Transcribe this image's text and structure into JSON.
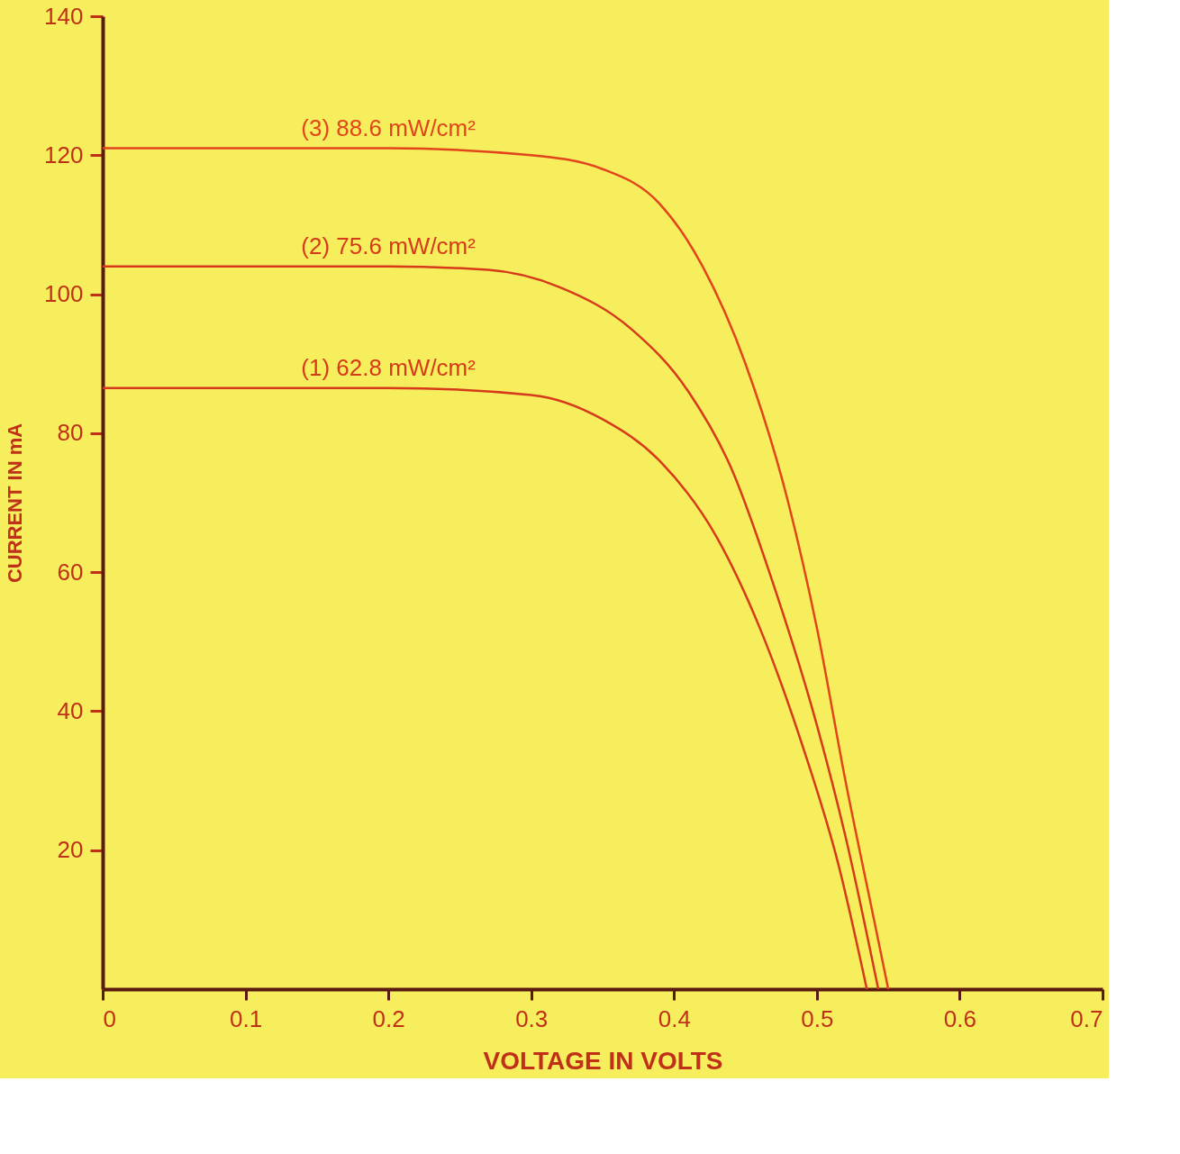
{
  "chart_data": {
    "type": "line",
    "xlabel": "VOLTAGE IN VOLTS",
    "ylabel": "CURRENT IN mA",
    "xlim": [
      0,
      0.7
    ],
    "xticks": [
      0,
      0.1,
      0.2,
      0.3,
      0.4,
      0.5,
      0.6,
      0.7
    ],
    "ylim": [
      0,
      140
    ],
    "yticks": [
      20,
      40,
      60,
      80,
      100,
      120,
      140
    ],
    "grid": false,
    "legend": false,
    "marker": "none",
    "line_style": "solid",
    "series": [
      {
        "name": "(3) 88.6 mW/cm²",
        "color": "#e2451c",
        "x": [
          0,
          0.1,
          0.2,
          0.3,
          0.35,
          0.39,
          0.42,
          0.45,
          0.48,
          0.5,
          0.52,
          0.54,
          0.55
        ],
        "values": [
          121,
          121,
          121,
          120,
          118,
          113,
          104,
          90,
          70,
          52,
          30,
          10,
          0
        ]
      },
      {
        "name": "(2) 75.6 mW/cm²",
        "color": "#d63a1a",
        "x": [
          0,
          0.1,
          0.2,
          0.27,
          0.32,
          0.37,
          0.41,
          0.44,
          0.47,
          0.5,
          0.52,
          0.543
        ],
        "values": [
          104,
          104,
          104,
          103.5,
          101,
          95,
          86,
          75,
          58,
          38,
          22,
          0
        ]
      },
      {
        "name": "(1) 62.8 mW/cm²",
        "color": "#d63a1a",
        "x": [
          0,
          0.1,
          0.2,
          0.3,
          0.35,
          0.39,
          0.43,
          0.46,
          0.49,
          0.515,
          0.535
        ],
        "values": [
          86.5,
          86.5,
          86.5,
          85.5,
          82,
          76,
          65,
          52,
          35,
          18,
          0
        ]
      }
    ]
  }
}
